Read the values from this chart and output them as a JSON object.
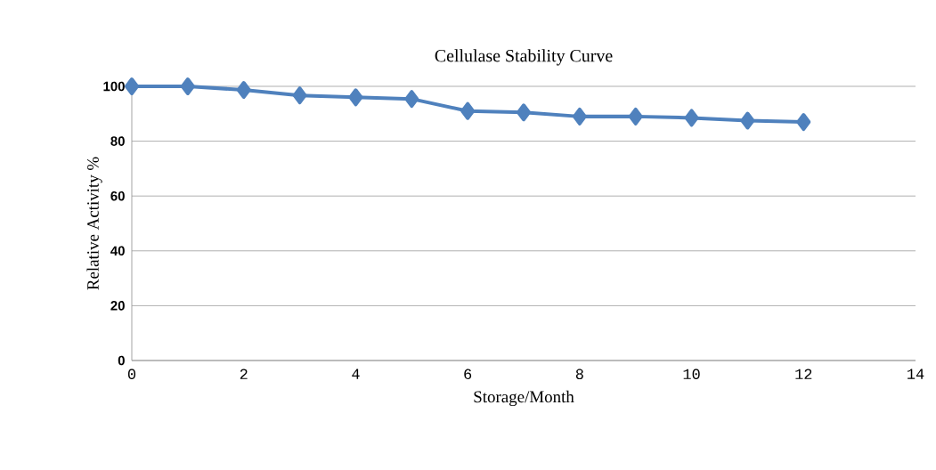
{
  "chart_data": {
    "type": "line",
    "title": "Cellulase Stability Curve",
    "xlabel": "Storage/Month",
    "ylabel": "Relative Activity %",
    "x": [
      0,
      1,
      2,
      3,
      4,
      5,
      6,
      7,
      8,
      9,
      10,
      11,
      12
    ],
    "series": [
      {
        "color": "#4f81bd",
        "values": [
          100,
          100,
          98.7,
          96.7,
          96,
          95.4,
          91,
          90.5,
          89,
          89,
          88.5,
          87.5,
          87
        ]
      }
    ],
    "xlim": [
      0,
      14
    ],
    "xticks": [
      0,
      2,
      4,
      6,
      8,
      10,
      12,
      14
    ],
    "ylim": [
      0,
      100
    ],
    "yticks": [
      0,
      20,
      40,
      60,
      80,
      100
    ],
    "grid": "y",
    "marker": "diamond",
    "line_style": "solid"
  }
}
